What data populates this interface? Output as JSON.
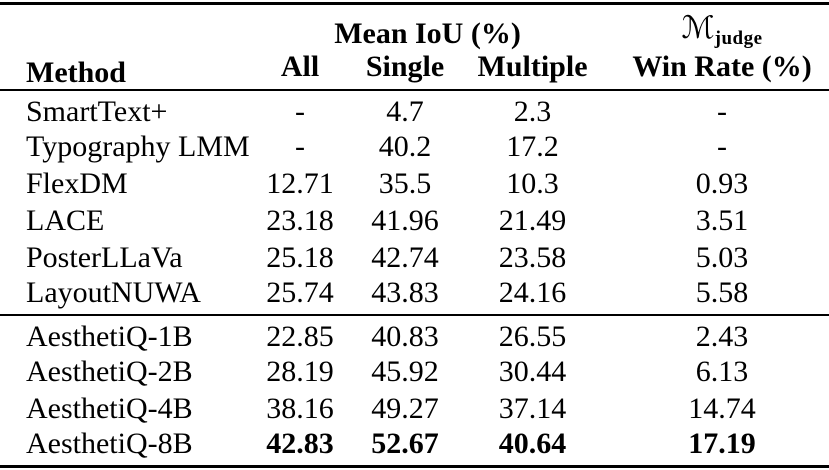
{
  "table": {
    "header": {
      "method": "Method",
      "group_iou": "Mean IoU (%)",
      "judge_symbol": "ℳ",
      "judge_sub": "judge",
      "sub_all": "All",
      "sub_single": "Single",
      "sub_multiple": "Multiple",
      "win_rate": "Win Rate (%)"
    },
    "rows": [
      {
        "method": "SmartText+",
        "all": "-",
        "single": "4.7",
        "multiple": "2.3",
        "win_rate": "-"
      },
      {
        "method": "Typography LMM",
        "all": "-",
        "single": "40.2",
        "multiple": "17.2",
        "win_rate": "-"
      },
      {
        "method": "FlexDM",
        "all": "12.71",
        "single": "35.5",
        "multiple": "10.3",
        "win_rate": "0.93"
      },
      {
        "method": "LACE",
        "all": "23.18",
        "single": "41.96",
        "multiple": "21.49",
        "win_rate": "3.51"
      },
      {
        "method": "PosterLLaVa",
        "all": "25.18",
        "single": "42.74",
        "multiple": "23.58",
        "win_rate": "5.03"
      },
      {
        "method": "LayoutNUWA",
        "all": "25.74",
        "single": "43.83",
        "multiple": "24.16",
        "win_rate": "5.58"
      },
      {
        "method": "AesthetiQ-1B",
        "all": "22.85",
        "single": "40.83",
        "multiple": "26.55",
        "win_rate": "2.43"
      },
      {
        "method": "AesthetiQ-2B",
        "all": "28.19",
        "single": "45.92",
        "multiple": "30.44",
        "win_rate": "6.13"
      },
      {
        "method": "AesthetiQ-4B",
        "all": "38.16",
        "single": "49.27",
        "multiple": "37.14",
        "win_rate": "14.74"
      },
      {
        "method": "AesthetiQ-8B",
        "all": "42.83",
        "single": "52.67",
        "multiple": "40.64",
        "win_rate": "17.19"
      }
    ]
  }
}
